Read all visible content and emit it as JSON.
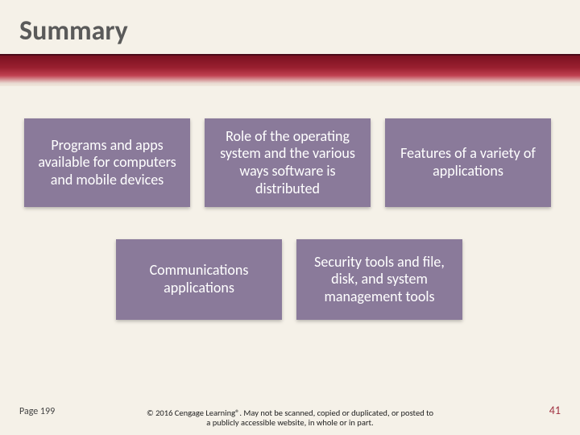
{
  "title": "Summary",
  "title_color": "#5a5a5a",
  "title_fontsize": 34,
  "bar_gradient": [
    "#7a1020",
    "#9a2030",
    "#c04050",
    "#e8d8d0",
    "#f0e8dc"
  ],
  "background_color": "#f5f1e8",
  "boxes": {
    "box_bg": "#8a7a9a",
    "box_text_color": "#ffffff",
    "box_fontsize": 18,
    "row1": [
      "Programs and apps available for computers and mobile devices",
      "Role of the operating system and the various ways software is distributed",
      "Features of a variety of applications"
    ],
    "row2": [
      "Communications applications",
      "Security tools and file, disk, and system management tools"
    ]
  },
  "footer": {
    "page_ref": "Page 199",
    "copyright": "© 2016 Cengage Learning®. May not be scanned, copied or duplicated, or posted to a publicly accessible website, in whole or in part.",
    "slide_number": "41",
    "slide_number_color": "#a03040"
  }
}
